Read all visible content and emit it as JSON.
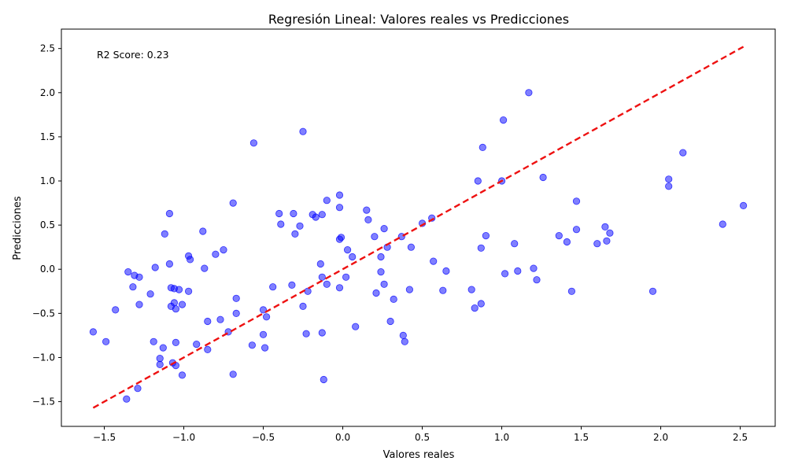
{
  "chart_data": {
    "type": "scatter",
    "title": "Regresión Lineal: Valores reales vs Predicciones",
    "xlabel": "Valores reales",
    "ylabel": "Predicciones",
    "annotation": "R2 Score: 0.23",
    "xlim": [
      -1.77,
      2.72
    ],
    "ylim": [
      -1.78,
      2.72
    ],
    "x_ticks": [
      -1.5,
      -1.0,
      -0.5,
      0.0,
      0.5,
      1.0,
      1.5,
      2.0,
      2.5
    ],
    "y_ticks": [
      -1.5,
      -1.0,
      -0.5,
      0.0,
      0.5,
      1.0,
      1.5,
      2.0,
      2.5
    ],
    "x_tick_labels": [
      "−1.5",
      "−1.0",
      "−0.5",
      "0.0",
      "0.5",
      "1.0",
      "1.5",
      "2.0",
      "2.5"
    ],
    "y_tick_labels": [
      "−1.5",
      "−1.0",
      "−0.5",
      "0.0",
      "0.5",
      "1.0",
      "1.5",
      "2.0",
      "2.5"
    ],
    "grid": false,
    "point_color": "#0000ff",
    "point_alpha": 0.5,
    "line_color": "#ee1111",
    "ideal_line": {
      "x": [
        -1.57,
        2.52
      ],
      "y": [
        -1.57,
        2.52
      ]
    },
    "points": [
      [
        -1.57,
        -0.71
      ],
      [
        -1.49,
        -0.82
      ],
      [
        -1.43,
        -0.46
      ],
      [
        -1.36,
        -1.47
      ],
      [
        -1.35,
        -0.03
      ],
      [
        -1.32,
        -0.2
      ],
      [
        -1.31,
        -0.07
      ],
      [
        -1.29,
        -1.35
      ],
      [
        -1.28,
        -0.4
      ],
      [
        -1.28,
        -0.09
      ],
      [
        -1.21,
        -0.28
      ],
      [
        -1.19,
        -0.82
      ],
      [
        -1.18,
        0.02
      ],
      [
        -1.15,
        -1.01
      ],
      [
        -1.15,
        -1.08
      ],
      [
        -1.13,
        -0.89
      ],
      [
        -1.12,
        0.4
      ],
      [
        -1.09,
        0.63
      ],
      [
        -1.09,
        0.06
      ],
      [
        -1.08,
        -0.21
      ],
      [
        -1.08,
        -0.42
      ],
      [
        -1.07,
        -1.06
      ],
      [
        -1.06,
        -0.38
      ],
      [
        -1.06,
        -0.22
      ],
      [
        -1.05,
        -0.45
      ],
      [
        -1.05,
        -0.83
      ],
      [
        -1.05,
        -1.09
      ],
      [
        -1.03,
        -0.23
      ],
      [
        -1.01,
        -1.2
      ],
      [
        -1.01,
        -0.4
      ],
      [
        -0.97,
        0.15
      ],
      [
        -0.97,
        -0.25
      ],
      [
        -0.96,
        0.11
      ],
      [
        -0.92,
        -0.85
      ],
      [
        -0.88,
        0.43
      ],
      [
        -0.87,
        0.01
      ],
      [
        -0.85,
        -0.59
      ],
      [
        -0.85,
        -0.91
      ],
      [
        -0.8,
        0.17
      ],
      [
        -0.77,
        -0.57
      ],
      [
        -0.75,
        0.22
      ],
      [
        -0.72,
        -0.71
      ],
      [
        -0.69,
        0.75
      ],
      [
        -0.69,
        -1.19
      ],
      [
        -0.67,
        -0.33
      ],
      [
        -0.67,
        -0.5
      ],
      [
        -0.56,
        1.43
      ],
      [
        -0.57,
        -0.86
      ],
      [
        -0.5,
        -0.46
      ],
      [
        -0.5,
        -0.74
      ],
      [
        -0.49,
        -0.89
      ],
      [
        -0.48,
        -0.54
      ],
      [
        -0.44,
        -0.2
      ],
      [
        -0.4,
        0.63
      ],
      [
        -0.39,
        0.51
      ],
      [
        -0.32,
        -0.18
      ],
      [
        -0.31,
        0.63
      ],
      [
        -0.3,
        0.4
      ],
      [
        -0.27,
        0.49
      ],
      [
        -0.25,
        1.56
      ],
      [
        -0.25,
        -0.42
      ],
      [
        -0.23,
        -0.73
      ],
      [
        -0.22,
        -0.25
      ],
      [
        -0.19,
        0.62
      ],
      [
        -0.17,
        0.59
      ],
      [
        -0.14,
        0.06
      ],
      [
        -0.13,
        0.62
      ],
      [
        -0.13,
        -0.09
      ],
      [
        -0.13,
        -0.72
      ],
      [
        -0.12,
        -1.25
      ],
      [
        -0.1,
        0.78
      ],
      [
        -0.1,
        -0.17
      ],
      [
        -0.02,
        0.84
      ],
      [
        -0.02,
        0.7
      ],
      [
        -0.02,
        0.34
      ],
      [
        -0.01,
        0.36
      ],
      [
        -0.02,
        -0.21
      ],
      [
        0.02,
        -0.09
      ],
      [
        0.03,
        0.22
      ],
      [
        0.06,
        0.14
      ],
      [
        0.08,
        -0.65
      ],
      [
        0.15,
        0.67
      ],
      [
        0.16,
        0.56
      ],
      [
        0.2,
        0.37
      ],
      [
        0.21,
        -0.27
      ],
      [
        0.24,
        0.14
      ],
      [
        0.24,
        -0.03
      ],
      [
        0.26,
        0.46
      ],
      [
        0.26,
        -0.17
      ],
      [
        0.28,
        0.25
      ],
      [
        0.3,
        -0.59
      ],
      [
        0.32,
        -0.34
      ],
      [
        0.37,
        0.37
      ],
      [
        0.38,
        -0.75
      ],
      [
        0.39,
        -0.82
      ],
      [
        0.42,
        -0.23
      ],
      [
        0.43,
        0.25
      ],
      [
        0.5,
        0.52
      ],
      [
        0.56,
        0.58
      ],
      [
        0.57,
        0.09
      ],
      [
        0.63,
        -0.24
      ],
      [
        0.65,
        -0.02
      ],
      [
        0.81,
        -0.23
      ],
      [
        0.83,
        -0.44
      ],
      [
        0.85,
        1.0
      ],
      [
        0.87,
        0.24
      ],
      [
        0.87,
        -0.39
      ],
      [
        0.88,
        1.38
      ],
      [
        0.9,
        0.38
      ],
      [
        1.0,
        1.0
      ],
      [
        1.01,
        1.69
      ],
      [
        1.02,
        -0.05
      ],
      [
        1.08,
        0.29
      ],
      [
        1.1,
        -0.02
      ],
      [
        1.17,
        2.0
      ],
      [
        1.2,
        0.01
      ],
      [
        1.22,
        -0.12
      ],
      [
        1.26,
        1.04
      ],
      [
        1.36,
        0.38
      ],
      [
        1.41,
        0.31
      ],
      [
        1.44,
        -0.25
      ],
      [
        1.47,
        0.77
      ],
      [
        1.47,
        0.45
      ],
      [
        1.6,
        0.29
      ],
      [
        1.65,
        0.48
      ],
      [
        1.66,
        0.32
      ],
      [
        1.68,
        0.41
      ],
      [
        1.95,
        -0.25
      ],
      [
        2.05,
        1.02
      ],
      [
        2.05,
        0.94
      ],
      [
        2.14,
        1.32
      ],
      [
        2.39,
        0.51
      ],
      [
        2.52,
        0.72
      ]
    ]
  }
}
